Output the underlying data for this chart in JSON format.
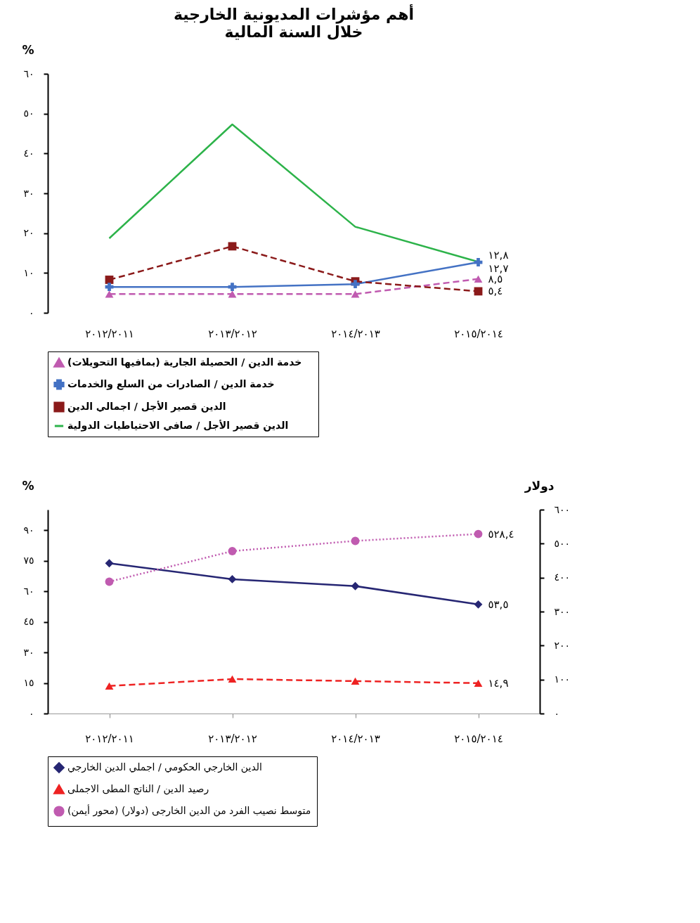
{
  "chart_data": [
    {
      "type": "line",
      "title": "أهم مؤشرات المديونية الخارجية",
      "subtitle": "خلال السنة المالية",
      "ylabel": "%",
      "categories": [
        "٢٠١٢/٢٠١١",
        "٢٠١٣/٢٠١٢",
        "٢٠١٤/٢٠١٣",
        "٢٠١٥/٢٠١٤"
      ],
      "ylim": [
        0,
        60
      ],
      "yticks": [
        {
          "value": 0,
          "label": "٠"
        },
        {
          "value": 10,
          "label": "١٠"
        },
        {
          "value": 20,
          "label": "٢٠"
        },
        {
          "value": 30,
          "label": "٣٠"
        },
        {
          "value": 40,
          "label": "٤٠"
        },
        {
          "value": 50,
          "label": "٥٠"
        },
        {
          "value": 60,
          "label": "٦٠"
        }
      ],
      "grid": false,
      "legend": "bottom",
      "series": [
        {
          "name": "خدمة الدين  /  الحصيلة الجارية  (بمافيها التحويلات)",
          "color": "#c05bb0",
          "values": [
            4.7,
            4.7,
            4.7,
            8.5
          ],
          "marker": "triangle",
          "line_style": "dashed",
          "value_labels": [
            null,
            null,
            null,
            "٨,٥"
          ]
        },
        {
          "name": "خدمة الدين  /  الصادرات من السلع والخدمات",
          "color": "#4472c4",
          "values": [
            6.5,
            6.5,
            7.2,
            12.7
          ],
          "marker": "cross",
          "line_style": "solid",
          "value_labels": [
            null,
            null,
            null,
            "١٢,٧"
          ]
        },
        {
          "name": "الدين قصير  الأجل / اجمالي الدين",
          "color": "#8b1a1a",
          "values": [
            8.3,
            16.7,
            7.9,
            5.4
          ],
          "marker": "square",
          "line_style": "dashed",
          "value_labels": [
            null,
            null,
            null,
            "٥,٤"
          ]
        },
        {
          "name": "الدين قصير  الأجل / صافي الاحتياطيات الدولية",
          "color": "#2db34a",
          "values": [
            18.7,
            47.3,
            21.6,
            12.8
          ],
          "marker": "none",
          "line_style": "solid",
          "value_labels": [
            null,
            null,
            null,
            "١٢,٨"
          ]
        }
      ]
    },
    {
      "type": "line",
      "ylabel": "%",
      "y2label": "دولار",
      "categories": [
        "٢٠١٢/٢٠١١",
        "٢٠١٣/٢٠١٢",
        "٢٠١٤/٢٠١٣",
        "٢٠١٥/٢٠١٤"
      ],
      "ylim": [
        0,
        100
      ],
      "yticks": [
        {
          "value": 0,
          "label": "٠"
        },
        {
          "value": 15,
          "label": "١٥"
        },
        {
          "value": 30,
          "label": "٣٠"
        },
        {
          "value": 45,
          "label": "٤٥"
        },
        {
          "value": 60,
          "label": "٦٠"
        },
        {
          "value": 75,
          "label": "٧٥"
        },
        {
          "value": 90,
          "label": "٩٠"
        }
      ],
      "y2lim": [
        0,
        600
      ],
      "y2ticks": [
        {
          "value": 0,
          "label": "٠"
        },
        {
          "value": 100,
          "label": "١٠٠"
        },
        {
          "value": 200,
          "label": "٢٠٠"
        },
        {
          "value": 300,
          "label": "٣٠٠"
        },
        {
          "value": 400,
          "label": "٤٠٠"
        },
        {
          "value": 500,
          "label": "٥٠٠"
        },
        {
          "value": 600,
          "label": "٦٠٠"
        }
      ],
      "grid": false,
      "legend": "bottom",
      "series": [
        {
          "name": "الدين الخارجي الحكومي / اجملي الدين الخارجي",
          "color": "#262673",
          "values": [
            73.7,
            65.9,
            62.5,
            53.5
          ],
          "marker": "diamond",
          "line_style": "solid",
          "value_labels": [
            null,
            null,
            null,
            "٥٣,٥"
          ]
        },
        {
          "name": "رصيد الدين  /  الناتج المطى الاجملى",
          "color": "#ee2222",
          "values": [
            13.5,
            16.9,
            15.9,
            14.9
          ],
          "marker": "triangle",
          "line_style": "dashed",
          "value_labels": [
            null,
            null,
            null,
            "١٤,٩"
          ]
        },
        {
          "name": "متوسط نصيب الفرد من الدين الخارجى (دولار) (محور أيمن)",
          "color": "#c05bb0",
          "values": [
            388,
            478,
            508,
            528.4
          ],
          "marker": "circle",
          "line_style": "dotted",
          "axis": "y2",
          "value_labels": [
            null,
            null,
            null,
            "٥٢٨,٤"
          ]
        }
      ]
    }
  ]
}
